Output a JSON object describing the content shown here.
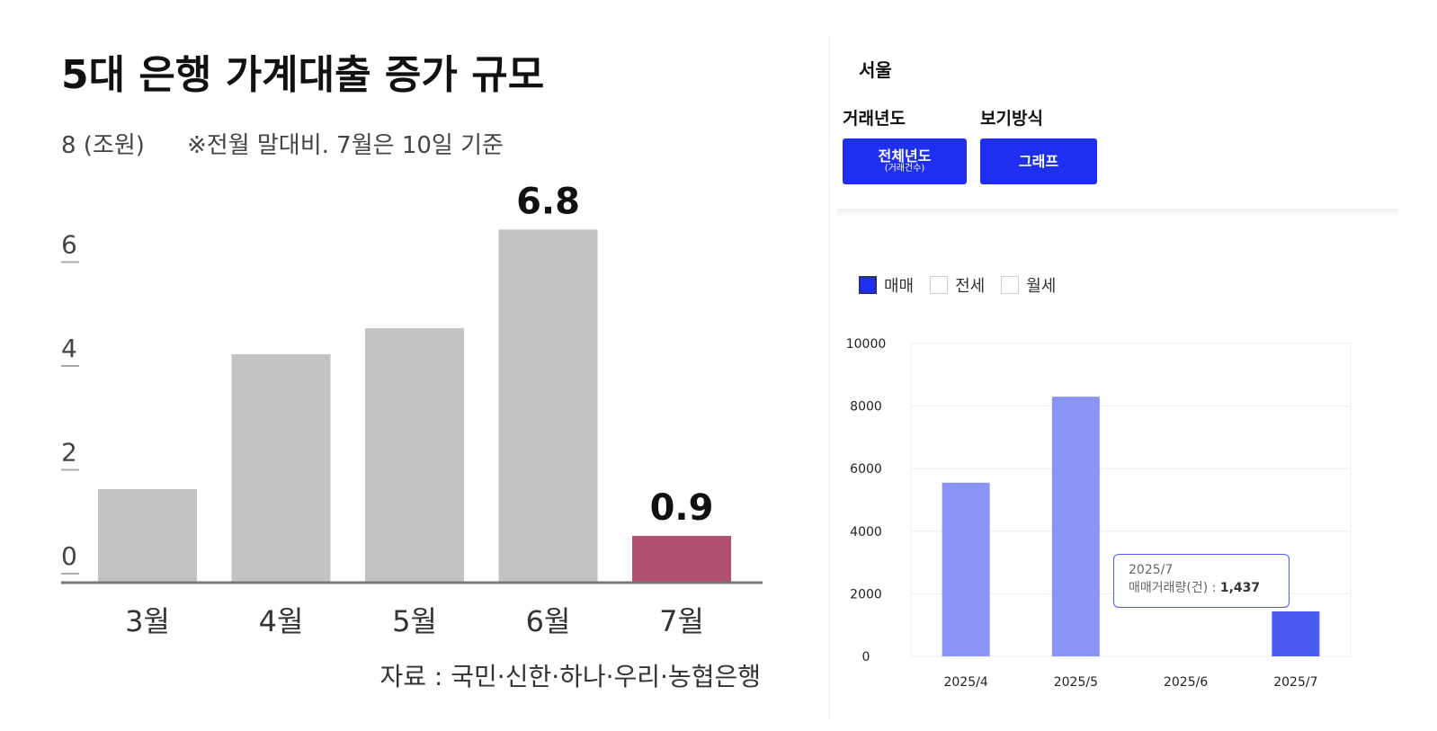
{
  "chart_data": [
    {
      "type": "bar",
      "title": "5대 은행 가계대출 증가 규모",
      "unit_label": "8 (조원)",
      "note": "※전월 말대비. 7월은 10일 기준",
      "categories": [
        "3월",
        "4월",
        "5월",
        "6월",
        "7월"
      ],
      "values": [
        1.8,
        4.4,
        4.9,
        6.8,
        0.9
      ],
      "data_labels": [
        "",
        "",
        "",
        "6.8",
        "0.9"
      ],
      "highlight_index": 4,
      "colors": {
        "bar": "#c3c3c3",
        "highlight": "#b05070",
        "axis": "#777777"
      },
      "yticks": [
        "0",
        "2",
        "4",
        "6"
      ],
      "ylim": [
        0,
        8
      ],
      "grid": false,
      "source": "자료 : 국민·신한·하나·우리·농협은행"
    },
    {
      "type": "bar",
      "categories": [
        "2025/4",
        "2025/5",
        "2025/6",
        "2025/7"
      ],
      "values": [
        5550,
        8300,
        0,
        1437
      ],
      "yticks": [
        "0",
        "2000",
        "4000",
        "6000",
        "8000",
        "10000"
      ],
      "ylim": [
        0,
        10000
      ],
      "grid": true,
      "colors": {
        "bar": "#8a94f5",
        "highlight": "#4a5cf0",
        "grid": "#eeeeee"
      },
      "highlight_index": 3
    }
  ],
  "panel": {
    "region": "서울",
    "year_label": "거래년도",
    "view_label": "보기방식",
    "year_button": {
      "main": "전체년도",
      "sub": "(거래건수)"
    },
    "view_button": "그래프",
    "accent": "#1f2ff0"
  },
  "legend": [
    {
      "label": "매매",
      "checked": true
    },
    {
      "label": "전세",
      "checked": false
    },
    {
      "label": "월세",
      "checked": false
    }
  ],
  "tooltip": {
    "title": "2025/7",
    "label": "매매거래량(건) : ",
    "value": "1,437"
  }
}
